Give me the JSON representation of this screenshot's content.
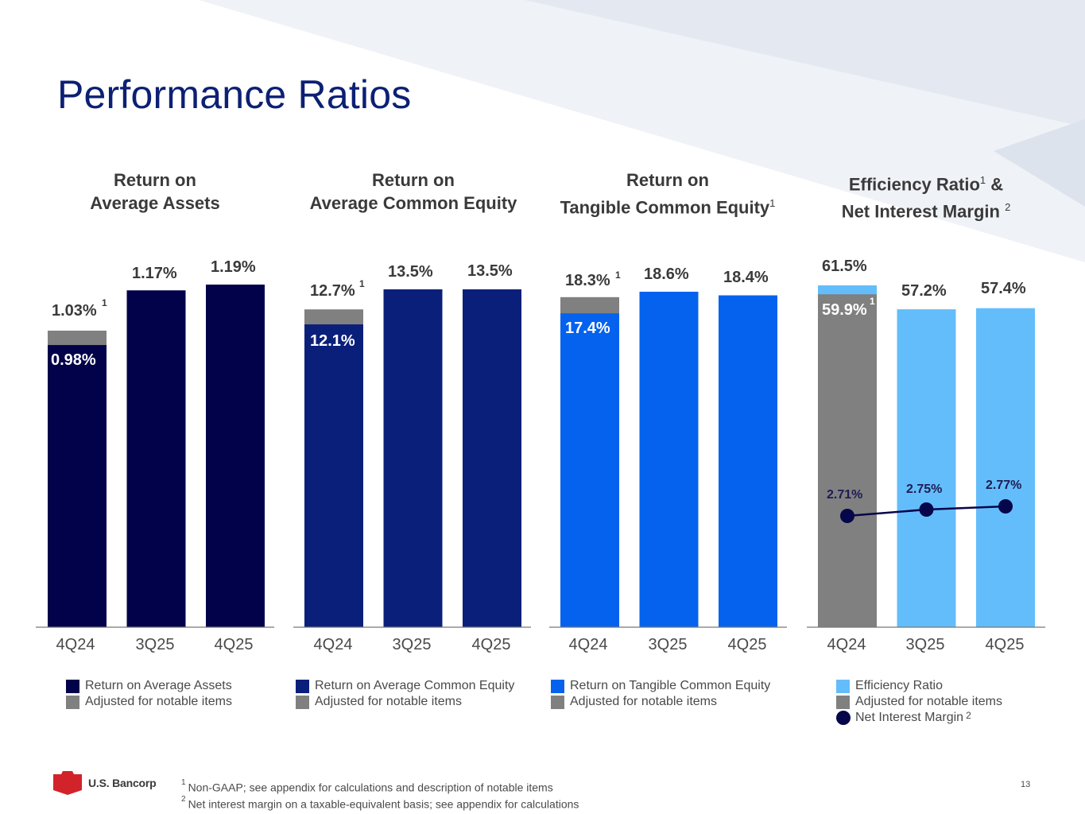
{
  "title": "Performance Ratios",
  "colors": {
    "navy_dark": "#02024a",
    "navy": "#0a1f7a",
    "blue": "#0462ee",
    "light_blue": "#64bdfb",
    "gray": "#808080",
    "nim_line": "#06064a",
    "title_blue": "#0c2074"
  },
  "panels": [
    {
      "title_line1": "Return on",
      "title_line2": "Average Assets",
      "legend": [
        "Return on Average Assets",
        "Adjusted for notable items"
      ]
    },
    {
      "title_line1": "Return on",
      "title_line2": "Average Common Equity",
      "legend": [
        "Return on Average Common Equity",
        "Adjusted for notable items"
      ]
    },
    {
      "title_line1": "Return on",
      "title_line2": "Tangible Common Equity",
      "title_sup": "1",
      "legend": [
        "Return on Tangible Common Equity",
        "Adjusted for notable items"
      ]
    },
    {
      "title_line1": "Efficiency Ratio",
      "title_line1_sup": "1",
      "title_line1_end": " &",
      "title_line2": "Net Interest Margin",
      "title_sup": "2",
      "legend": [
        "Efficiency Ratio",
        "Adjusted for notable items",
        "Net Interest Margin"
      ],
      "legend_sup": "2"
    }
  ],
  "chart_data": [
    {
      "type": "bar",
      "title": "Return on Average Assets",
      "categories": [
        "4Q24",
        "3Q25",
        "4Q25"
      ],
      "ylim": [
        0,
        1.19
      ],
      "series": [
        {
          "name": "Return on Average Assets",
          "values": [
            0.98,
            1.17,
            1.19
          ],
          "labels": [
            "0.98%",
            "1.17%",
            "1.19%"
          ]
        },
        {
          "name": "Adjusted for notable items",
          "values": [
            1.03,
            null,
            null
          ],
          "labels": [
            "1.03%",
            null,
            null
          ]
        }
      ],
      "footnote_mark": "1"
    },
    {
      "type": "bar",
      "title": "Return on Average Common Equity",
      "categories": [
        "4Q24",
        "3Q25",
        "4Q25"
      ],
      "series": [
        {
          "name": "Return on Average Common Equity",
          "values": [
            12.1,
            13.5,
            13.5
          ],
          "labels": [
            "12.1%",
            "13.5%",
            "13.5%"
          ]
        },
        {
          "name": "Adjusted for notable items",
          "values": [
            12.7,
            null,
            null
          ],
          "labels": [
            "12.7%",
            null,
            null
          ]
        }
      ],
      "footnote_mark": "1"
    },
    {
      "type": "bar",
      "title": "Return on Tangible Common Equity",
      "categories": [
        "4Q24",
        "3Q25",
        "4Q25"
      ],
      "series": [
        {
          "name": "Return on Tangible Common Equity",
          "values": [
            17.4,
            18.6,
            18.4
          ],
          "labels": [
            "17.4%",
            "18.6%",
            "18.4%"
          ]
        },
        {
          "name": "Adjusted for notable items",
          "values": [
            18.3,
            null,
            null
          ],
          "labels": [
            "18.3%",
            null,
            null
          ]
        }
      ],
      "footnote_mark": "1"
    },
    {
      "type": "bar",
      "title": "Efficiency Ratio & Net Interest Margin",
      "categories": [
        "4Q24",
        "3Q25",
        "4Q25"
      ],
      "series": [
        {
          "name": "Efficiency Ratio",
          "values": [
            61.5,
            57.2,
            57.4
          ],
          "labels": [
            "61.5%",
            "57.2%",
            "57.4%"
          ]
        },
        {
          "name": "Adjusted for notable items",
          "values": [
            59.9,
            null,
            null
          ],
          "labels": [
            "59.9%",
            null,
            null
          ]
        },
        {
          "name": "Net Interest Margin",
          "chart_type": "line",
          "values": [
            2.71,
            2.75,
            2.77
          ],
          "labels": [
            "2.71%",
            "2.75%",
            "2.77%"
          ]
        }
      ],
      "footnote_mark": "1"
    }
  ],
  "footnotes": [
    {
      "mark": "1",
      "text": "Non-GAAP; see appendix for calculations and description of notable items"
    },
    {
      "mark": "2",
      "text": "Net interest margin on a taxable-equivalent basis; see appendix for calculations"
    }
  ],
  "logo": {
    "name": "U.S. Bancorp"
  },
  "page_number": "13"
}
